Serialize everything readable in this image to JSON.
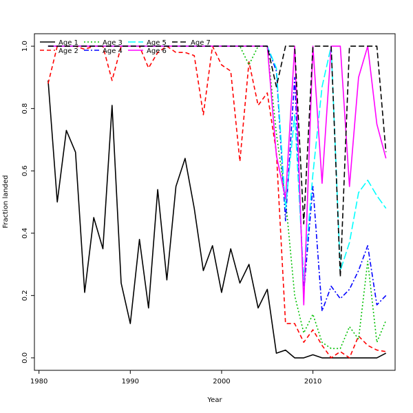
{
  "chart_data": {
    "type": "line",
    "xlabel": "Year",
    "ylabel": "Fraction landed",
    "xlim": [
      1979.5,
      2019
    ],
    "ylim": [
      -0.04,
      1.04
    ],
    "xticks": [
      1980,
      1990,
      2000,
      2010
    ],
    "yticks": [
      0.0,
      0.2,
      0.4,
      0.6,
      0.8,
      1.0
    ],
    "ytick_labels": [
      "0.0",
      "0.2",
      "0.4",
      "0.6",
      "0.8",
      "1.0"
    ],
    "legend_position": "top-left",
    "x": [
      1981,
      1982,
      1983,
      1984,
      1985,
      1986,
      1987,
      1988,
      1989,
      1990,
      1991,
      1992,
      1993,
      1994,
      1995,
      1996,
      1997,
      1998,
      1999,
      2000,
      2001,
      2002,
      2003,
      2004,
      2005,
      2006,
      2007,
      2008,
      2009,
      2010,
      2011,
      2012,
      2013,
      2014,
      2015,
      2016,
      2017,
      2018
    ],
    "series": [
      {
        "name": "Age 1",
        "color": "#000000",
        "dash": "solid",
        "values": [
          0.89,
          0.5,
          0.73,
          0.66,
          0.21,
          0.45,
          0.35,
          0.81,
          0.24,
          0.11,
          0.38,
          0.16,
          0.54,
          0.25,
          0.55,
          0.64,
          0.48,
          0.28,
          0.36,
          0.21,
          0.35,
          0.24,
          0.3,
          0.16,
          0.22,
          0.015,
          0.025,
          0.0,
          0.0,
          0.01,
          0.0,
          0.0,
          0.0,
          0.0,
          0.0,
          0.0,
          0.0,
          0.015
        ]
      },
      {
        "name": "Age 2",
        "color": "#ff0000",
        "dash": "dashed",
        "values": [
          0.88,
          1.0,
          1.0,
          1.0,
          0.99,
          1.0,
          1.0,
          0.89,
          1.0,
          1.0,
          1.0,
          0.93,
          0.98,
          1.0,
          0.98,
          0.98,
          0.97,
          0.78,
          1.0,
          0.94,
          0.92,
          0.63,
          0.95,
          0.81,
          0.85,
          0.66,
          0.11,
          0.11,
          0.05,
          0.09,
          0.04,
          0.0,
          0.02,
          0.0,
          0.07,
          0.04,
          0.025,
          0.02
        ]
      },
      {
        "name": "Age 3",
        "color": "#00c000",
        "dash": "dotted",
        "values": [
          1.0,
          1.0,
          1.0,
          1.0,
          1.0,
          1.0,
          1.0,
          1.0,
          1.0,
          1.0,
          1.0,
          1.0,
          1.0,
          1.0,
          1.0,
          1.0,
          1.0,
          1.0,
          1.0,
          1.0,
          1.0,
          1.0,
          0.94,
          1.0,
          1.0,
          0.72,
          0.51,
          0.2,
          0.08,
          0.14,
          0.05,
          0.03,
          0.03,
          0.1,
          0.06,
          0.31,
          0.05,
          0.12
        ]
      },
      {
        "name": "Age 4",
        "color": "#0000ff",
        "dash": "dashdot",
        "values": [
          1.0,
          1.0,
          1.0,
          1.0,
          1.0,
          1.0,
          1.0,
          1.0,
          1.0,
          1.0,
          1.0,
          1.0,
          1.0,
          1.0,
          1.0,
          1.0,
          1.0,
          1.0,
          1.0,
          1.0,
          1.0,
          1.0,
          1.0,
          1.0,
          1.0,
          0.92,
          0.44,
          0.9,
          0.21,
          0.55,
          0.15,
          0.23,
          0.19,
          0.22,
          0.28,
          0.36,
          0.17,
          0.2
        ]
      },
      {
        "name": "Age 5",
        "color": "#00ffff",
        "dash": "longdash",
        "values": [
          1.0,
          1.0,
          1.0,
          1.0,
          1.0,
          1.0,
          1.0,
          1.0,
          1.0,
          1.0,
          1.0,
          1.0,
          1.0,
          1.0,
          1.0,
          1.0,
          1.0,
          1.0,
          1.0,
          1.0,
          1.0,
          1.0,
          1.0,
          1.0,
          1.0,
          0.93,
          0.48,
          0.78,
          0.25,
          0.59,
          0.87,
          1.0,
          0.28,
          0.37,
          0.53,
          0.57,
          0.52,
          0.48
        ]
      },
      {
        "name": "Age 6",
        "color": "#ff00ff",
        "dash": "solid",
        "values": [
          1.0,
          1.0,
          1.0,
          1.0,
          1.0,
          1.0,
          1.0,
          1.0,
          1.0,
          1.0,
          1.0,
          1.0,
          1.0,
          1.0,
          1.0,
          1.0,
          1.0,
          1.0,
          1.0,
          1.0,
          1.0,
          1.0,
          1.0,
          1.0,
          1.0,
          0.65,
          0.51,
          1.0,
          0.17,
          1.0,
          0.56,
          1.0,
          1.0,
          0.55,
          0.9,
          1.0,
          0.75,
          0.64
        ]
      },
      {
        "name": "Age 7",
        "color": "#000000",
        "dash": "twodash",
        "values": [
          1.0,
          1.0,
          1.0,
          1.0,
          1.0,
          1.0,
          1.0,
          1.0,
          1.0,
          1.0,
          1.0,
          1.0,
          1.0,
          1.0,
          1.0,
          1.0,
          1.0,
          1.0,
          1.0,
          1.0,
          1.0,
          1.0,
          1.0,
          1.0,
          1.0,
          0.87,
          1.0,
          1.0,
          0.43,
          1.0,
          1.0,
          1.0,
          0.26,
          1.0,
          1.0,
          1.0,
          1.0,
          0.66
        ]
      }
    ]
  }
}
